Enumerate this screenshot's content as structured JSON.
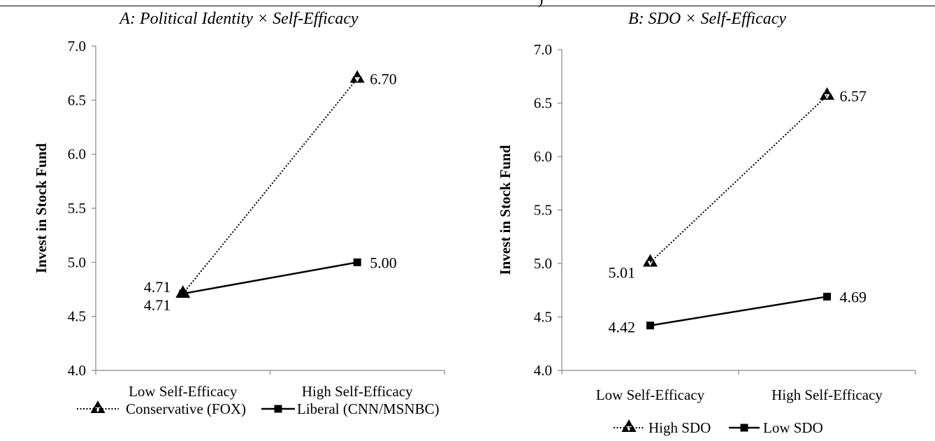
{
  "header_fragment": ")",
  "chart_data": [
    {
      "type": "line",
      "title": "A: Political Identity × Self-Efficacy",
      "ylabel": "Invest in Stock Fund",
      "xlabel": "",
      "categories": [
        "Low Self-Efficacy",
        "High Self-Efficacy"
      ],
      "ylim": [
        4.0,
        7.0
      ],
      "yticks": [
        "4.0",
        "4.5",
        "5.0",
        "5.5",
        "6.0",
        "6.5",
        "7.0"
      ],
      "legend_position": "bottom",
      "series": [
        {
          "name": "Conservative (FOX)",
          "values": [
            4.71,
            6.7
          ],
          "labels": [
            "4.71",
            "6.70"
          ],
          "style": "dotted",
          "marker": "triangle-cluster",
          "color": "#000000"
        },
        {
          "name": "Liberal (CNN/MSNBC)",
          "values": [
            4.71,
            5.0
          ],
          "labels": [
            "4.71",
            "5.00"
          ],
          "style": "solid",
          "marker": "square",
          "color": "#000000"
        }
      ]
    },
    {
      "type": "line",
      "title": "B: SDO × Self-Efficacy",
      "ylabel": "Invest in Stock Fund",
      "xlabel": "",
      "categories": [
        "Low Self-Efficacy",
        "High Self-Efficacy"
      ],
      "ylim": [
        4.0,
        7.0
      ],
      "yticks": [
        "4.0",
        "4.5",
        "5.0",
        "5.5",
        "6.0",
        "6.5",
        "7.0"
      ],
      "legend_position": "bottom",
      "series": [
        {
          "name": "High SDO",
          "values": [
            5.01,
            6.57
          ],
          "labels": [
            "5.01",
            "6.57"
          ],
          "style": "dotted",
          "marker": "triangle-cluster",
          "color": "#000000"
        },
        {
          "name": "Low SDO",
          "values": [
            4.42,
            4.69
          ],
          "labels": [
            "4.42",
            "4.69"
          ],
          "style": "solid",
          "marker": "square",
          "color": "#000000"
        }
      ]
    }
  ]
}
